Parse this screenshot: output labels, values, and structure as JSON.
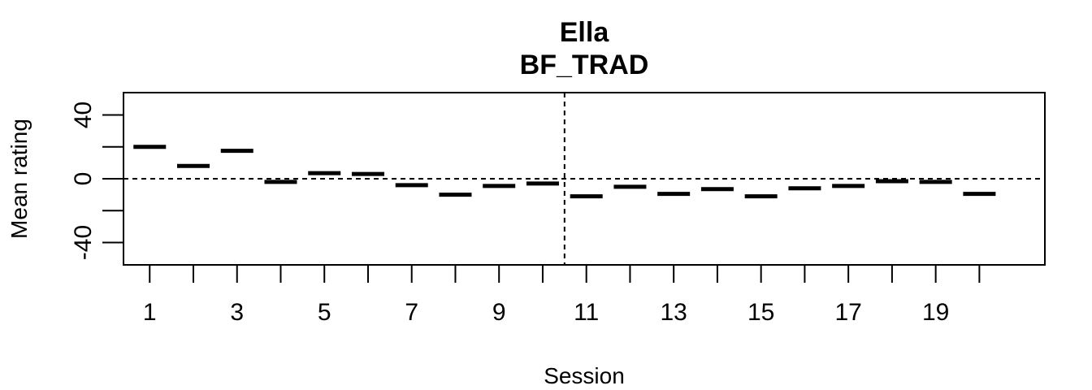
{
  "chart_data": {
    "type": "scatter",
    "marker": "horizontal-dash",
    "title": "Ella",
    "subtitle": "BF_TRAD",
    "xlabel": "Session",
    "ylabel": "Mean rating",
    "xlim": [
      0.4,
      21.5
    ],
    "ylim": [
      -54,
      54
    ],
    "x_tick_labels": [
      "1",
      "3",
      "5",
      "7",
      "9",
      "11",
      "13",
      "15",
      "17",
      "19"
    ],
    "y_tick_labels": [
      "-40",
      "0",
      "40"
    ],
    "reference_lines": {
      "horizontal_y": 0,
      "vertical_x": 10.5,
      "style": "dashed"
    },
    "x": [
      1,
      2,
      3,
      4,
      5,
      6,
      7,
      8,
      9,
      10,
      11,
      12,
      13,
      14,
      15,
      16,
      17,
      18,
      19,
      20
    ],
    "values": [
      20,
      8,
      17.5,
      -2,
      3.5,
      3,
      -4,
      -10,
      -4.5,
      -3,
      -11,
      -5,
      -9.5,
      -6.5,
      -11,
      -6,
      -4.5,
      -1.5,
      -2,
      -9.5
    ],
    "grid": false,
    "colors": {
      "marks": "#000000",
      "background": "#ffffff"
    }
  }
}
